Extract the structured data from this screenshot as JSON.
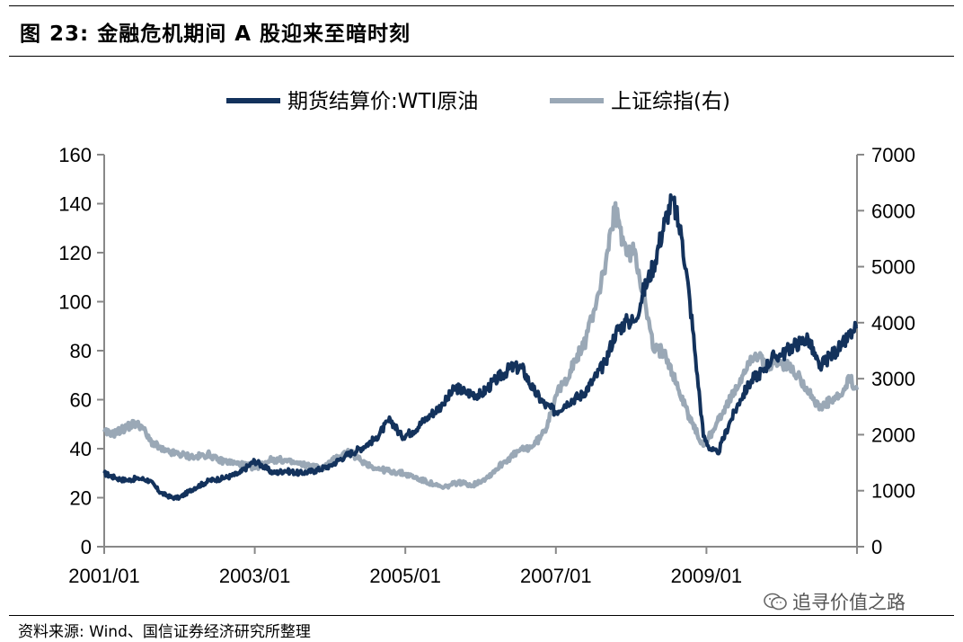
{
  "title": "图 23:  金融危机期间 A 股迎来至暗时刻",
  "source": "资料来源: Wind、国信证券经济研究所整理",
  "watermark": "追寻价值之路",
  "chart_data": {
    "type": "line",
    "title": "",
    "legend_position": "top",
    "grid": false,
    "x_axis": {
      "ticks": [
        "2001/01",
        "2003/01",
        "2005/01",
        "2007/01",
        "2009/01"
      ],
      "range": [
        2001.0,
        2011.0
      ]
    },
    "y_left": {
      "range": [
        0,
        160
      ],
      "ticks": [
        "0",
        "20",
        "40",
        "60",
        "80",
        "100",
        "120",
        "140",
        "160"
      ]
    },
    "y_right": {
      "range": [
        0,
        7000
      ],
      "ticks": [
        "0",
        "1000",
        "2000",
        "3000",
        "4000",
        "5000",
        "6000",
        "7000"
      ]
    },
    "series": [
      {
        "name": "期货结算价:WTI原油",
        "axis": "left",
        "color": "#13325c",
        "x": [
          2001.0,
          2001.15,
          2001.3,
          2001.45,
          2001.6,
          2001.75,
          2001.9,
          2002.0,
          2002.2,
          2002.4,
          2002.6,
          2002.8,
          2003.0,
          2003.1,
          2003.25,
          2003.4,
          2003.6,
          2003.8,
          2004.0,
          2004.2,
          2004.4,
          2004.6,
          2004.8,
          2004.95,
          2005.1,
          2005.3,
          2005.5,
          2005.67,
          2005.8,
          2006.0,
          2006.2,
          2006.4,
          2006.55,
          2006.7,
          2006.85,
          2007.0,
          2007.15,
          2007.35,
          2007.5,
          2007.65,
          2007.8,
          2007.95,
          2008.05,
          2008.15,
          2008.3,
          2008.45,
          2008.55,
          2008.68,
          2008.78,
          2008.88,
          2008.96,
          2009.05,
          2009.15,
          2009.3,
          2009.45,
          2009.6,
          2009.75,
          2009.9,
          2010.0,
          2010.15,
          2010.35,
          2010.5,
          2010.65,
          2010.8,
          2010.95,
          2011.0
        ],
        "values": [
          30,
          28,
          27,
          28,
          27,
          22,
          20,
          20,
          24,
          27,
          28,
          30,
          35,
          33,
          30,
          31,
          30,
          31,
          33,
          37,
          40,
          44,
          52,
          45,
          47,
          53,
          58,
          65,
          63,
          62,
          68,
          73,
          73,
          64,
          58,
          55,
          59,
          62,
          68,
          75,
          88,
          92,
          92,
          103,
          115,
          133,
          142,
          125,
          100,
          70,
          45,
          40,
          38,
          50,
          60,
          68,
          72,
          78,
          78,
          82,
          85,
          73,
          78,
          82,
          88,
          90
        ]
      },
      {
        "name": "上证综指(右)",
        "axis": "right",
        "color": "#9aa8b6",
        "x": [
          2001.0,
          2001.1,
          2001.25,
          2001.4,
          2001.5,
          2001.6,
          2001.8,
          2002.0,
          2002.2,
          2002.4,
          2002.5,
          2002.7,
          2002.9,
          2003.0,
          2003.2,
          2003.35,
          2003.5,
          2003.7,
          2003.9,
          2004.1,
          2004.25,
          2004.4,
          2004.6,
          2004.8,
          2005.0,
          2005.2,
          2005.4,
          2005.5,
          2005.7,
          2005.9,
          2006.1,
          2006.3,
          2006.5,
          2006.7,
          2006.85,
          2007.0,
          2007.1,
          2007.25,
          2007.4,
          2007.5,
          2007.6,
          2007.7,
          2007.78,
          2007.85,
          2007.95,
          2008.05,
          2008.15,
          2008.3,
          2008.45,
          2008.6,
          2008.75,
          2008.88,
          2008.96,
          2009.1,
          2009.25,
          2009.4,
          2009.55,
          2009.65,
          2009.8,
          2009.95,
          2010.1,
          2010.25,
          2010.4,
          2010.5,
          2010.65,
          2010.8,
          2010.9,
          2011.0
        ],
        "values": [
          2050,
          2000,
          2100,
          2200,
          2150,
          1900,
          1700,
          1650,
          1600,
          1650,
          1550,
          1500,
          1450,
          1400,
          1550,
          1550,
          1500,
          1450,
          1400,
          1600,
          1700,
          1550,
          1400,
          1350,
          1300,
          1200,
          1100,
          1050,
          1150,
          1100,
          1250,
          1500,
          1700,
          1800,
          2050,
          2700,
          2900,
          3300,
          3700,
          4200,
          4700,
          5300,
          6000,
          5700,
          5200,
          5300,
          4600,
          3500,
          3500,
          2900,
          2400,
          2000,
          1800,
          2100,
          2500,
          2800,
          3300,
          3450,
          3200,
          3300,
          3200,
          3000,
          2700,
          2450,
          2600,
          2700,
          3000,
          2800
        ]
      }
    ]
  }
}
